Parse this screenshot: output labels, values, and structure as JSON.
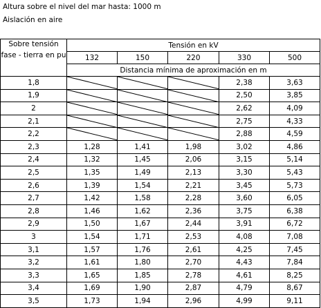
{
  "notes": {
    "altitude": "Altura sobre el nivel del mar hasta: 1000 m",
    "insulation": "Aislación en aire"
  },
  "table": {
    "corner_header": "Sobre tensión fase - tierra en pu",
    "voltage_header": "Tensión en kV",
    "voltages": [
      "132",
      "150",
      "220",
      "330",
      "500"
    ],
    "distance_header": "Distancia mínima de aproximación en m",
    "rows": [
      {
        "pu": "1,8",
        "values": [
          "",
          "",
          "",
          "2,38",
          "3,63"
        ]
      },
      {
        "pu": "1,9",
        "values": [
          "",
          "",
          "",
          "2,50",
          "3,85"
        ]
      },
      {
        "pu": "2",
        "values": [
          "",
          "",
          "",
          "2,62",
          "4,09"
        ]
      },
      {
        "pu": "2,1",
        "values": [
          "",
          "",
          "",
          "2,75",
          "4,33"
        ]
      },
      {
        "pu": "2,2",
        "values": [
          "",
          "",
          "",
          "2,88",
          "4,59"
        ]
      },
      {
        "pu": "2,3",
        "values": [
          "1,28",
          "1,41",
          "1,98",
          "3,02",
          "4,86"
        ]
      },
      {
        "pu": "2,4",
        "values": [
          "1,32",
          "1,45",
          "2,06",
          "3,15",
          "5,14"
        ]
      },
      {
        "pu": "2,5",
        "values": [
          "1,35",
          "1,49",
          "2,13",
          "3,30",
          "5,43"
        ]
      },
      {
        "pu": "2,6",
        "values": [
          "1,39",
          "1,54",
          "2,21",
          "3,45",
          "5,73"
        ]
      },
      {
        "pu": "2,7",
        "values": [
          "1,42",
          "1,58",
          "2,28",
          "3,60",
          "6,05"
        ]
      },
      {
        "pu": "2,8",
        "values": [
          "1,46",
          "1,62",
          "2,36",
          "3,75",
          "6,38"
        ]
      },
      {
        "pu": "2,9",
        "values": [
          "1,50",
          "1,67",
          "2,44",
          "3,91",
          "6,72"
        ]
      },
      {
        "pu": "3",
        "values": [
          "1,54",
          "1,71",
          "2,53",
          "4,08",
          "7,08"
        ]
      },
      {
        "pu": "3,1",
        "values": [
          "1,57",
          "1,76",
          "2,61",
          "4,25",
          "7,45"
        ]
      },
      {
        "pu": "3,2",
        "values": [
          "1,61",
          "1,80",
          "2,70",
          "4,43",
          "7,84"
        ]
      },
      {
        "pu": "3,3",
        "values": [
          "1,65",
          "1,85",
          "2,78",
          "4,61",
          "8,25"
        ]
      },
      {
        "pu": "3,4",
        "values": [
          "1,69",
          "1,90",
          "2,87",
          "4,79",
          "8,67"
        ]
      },
      {
        "pu": "3,5",
        "values": [
          "1,73",
          "1,94",
          "2,96",
          "4,99",
          "9,11"
        ]
      }
    ]
  }
}
